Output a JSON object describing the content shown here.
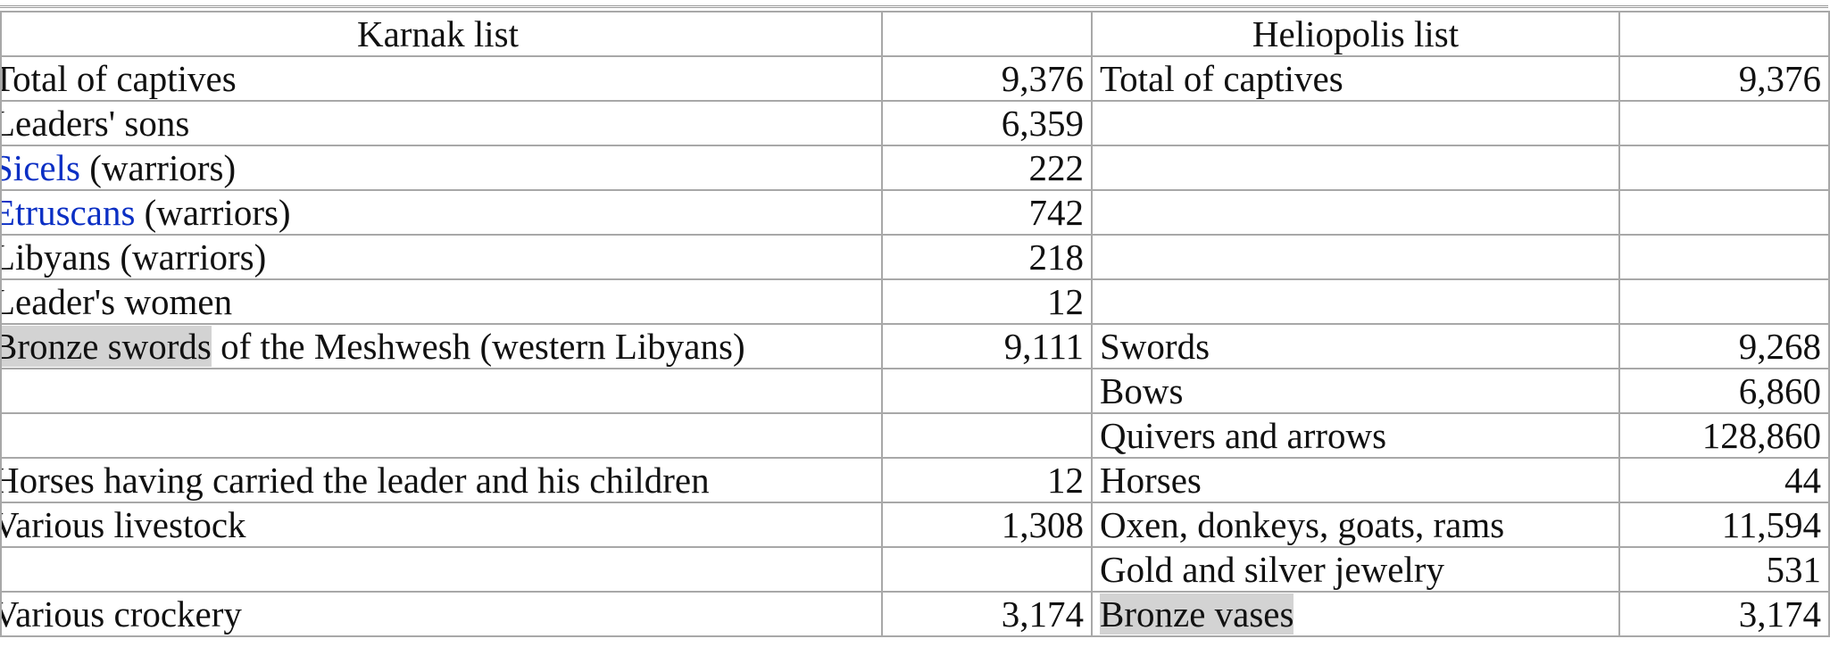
{
  "table": {
    "headers": [
      "Karnak list",
      null,
      "Heliopolis list",
      null
    ],
    "rows": [
      [
        "Total of captives",
        "9,376",
        "Total of captives",
        "9,376"
      ],
      [
        "Leaders' sons",
        "6,359",
        null,
        null
      ],
      [
        {
          "link": "Sicels",
          "rest": " (warriors)"
        },
        "222",
        null,
        null
      ],
      [
        {
          "link": "Etruscans",
          "rest": " (warriors)"
        },
        "742",
        null,
        null
      ],
      [
        "Libyans (warriors)",
        "218",
        null,
        null
      ],
      [
        "Leader's women",
        "12",
        null,
        null
      ],
      [
        {
          "highlight": "Bronze swords",
          "rest": " of the Meshwesh (western Libyans)"
        },
        "9,111",
        "Swords",
        "9,268"
      ],
      [
        null,
        null,
        "Bows",
        "6,860"
      ],
      [
        null,
        null,
        "Quivers and arrows",
        "128,860"
      ],
      [
        "Horses having carried the leader and his children",
        "12",
        "Horses",
        "44"
      ],
      [
        "Various livestock",
        "1,308",
        "Oxen, donkeys, goats, rams",
        "11,594"
      ],
      [
        null,
        null,
        "Gold and silver jewelry",
        "531"
      ],
      [
        "Various crockery",
        "3,174",
        {
          "highlight": "Bronze vases"
        },
        "3,174"
      ]
    ]
  }
}
